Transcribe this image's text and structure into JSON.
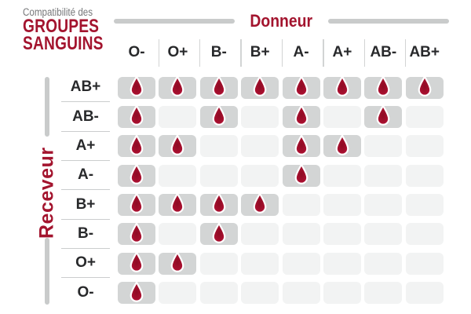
{
  "title": {
    "eyebrow": "Compatibilité des",
    "line1": "GROUPES",
    "line2": "SANGUINS"
  },
  "donor_axis": {
    "label": "Donneur"
  },
  "receiver_axis": {
    "label": "Receveur"
  },
  "donors": [
    "O-",
    "O+",
    "B-",
    "B+",
    "A-",
    "A+",
    "AB-",
    "AB+"
  ],
  "receivers": [
    "AB+",
    "AB-",
    "A+",
    "A-",
    "B+",
    "B-",
    "O+",
    "O-"
  ],
  "matrix": [
    [
      1,
      1,
      1,
      1,
      1,
      1,
      1,
      1
    ],
    [
      1,
      0,
      1,
      0,
      1,
      0,
      1,
      0
    ],
    [
      1,
      1,
      0,
      0,
      1,
      1,
      0,
      0
    ],
    [
      1,
      0,
      0,
      0,
      1,
      0,
      0,
      0
    ],
    [
      1,
      1,
      1,
      1,
      0,
      0,
      0,
      0
    ],
    [
      1,
      0,
      1,
      0,
      0,
      0,
      0,
      0
    ],
    [
      1,
      1,
      0,
      0,
      0,
      0,
      0,
      0
    ],
    [
      1,
      0,
      0,
      0,
      0,
      0,
      0,
      0
    ]
  ],
  "icons": {
    "compatible": "blood-drop-icon"
  },
  "colors": {
    "accent_red": "#A3142E",
    "drop_red": "#A50F2B",
    "cell_filled": "#D3D5D5",
    "cell_empty": "#F2F3F3",
    "text_dark": "#28292B",
    "text_gray": "#77787A",
    "line_gray": "#C9CBCB"
  },
  "chart_data": {
    "type": "heatmap",
    "title": "Compatibilité des GROUPES SANGUINS",
    "x_axis_label": "Donneur",
    "y_axis_label": "Receveur",
    "columns": [
      "O-",
      "O+",
      "B-",
      "B+",
      "A-",
      "A+",
      "AB-",
      "AB+"
    ],
    "rows": [
      "AB+",
      "AB-",
      "A+",
      "A-",
      "B+",
      "B-",
      "O+",
      "O-"
    ],
    "values": [
      [
        1,
        1,
        1,
        1,
        1,
        1,
        1,
        1
      ],
      [
        1,
        0,
        1,
        0,
        1,
        0,
        1,
        0
      ],
      [
        1,
        1,
        0,
        0,
        1,
        1,
        0,
        0
      ],
      [
        1,
        0,
        0,
        0,
        1,
        0,
        0,
        0
      ],
      [
        1,
        1,
        1,
        1,
        0,
        0,
        0,
        0
      ],
      [
        1,
        0,
        1,
        0,
        0,
        0,
        0,
        0
      ],
      [
        1,
        1,
        0,
        0,
        0,
        0,
        0,
        0
      ],
      [
        1,
        0,
        0,
        0,
        0,
        0,
        0,
        0
      ]
    ],
    "value_meaning": "1 = compatible (blood drop shown), 0 = not compatible (empty cell)",
    "legend_position": "none",
    "grid": false
  }
}
